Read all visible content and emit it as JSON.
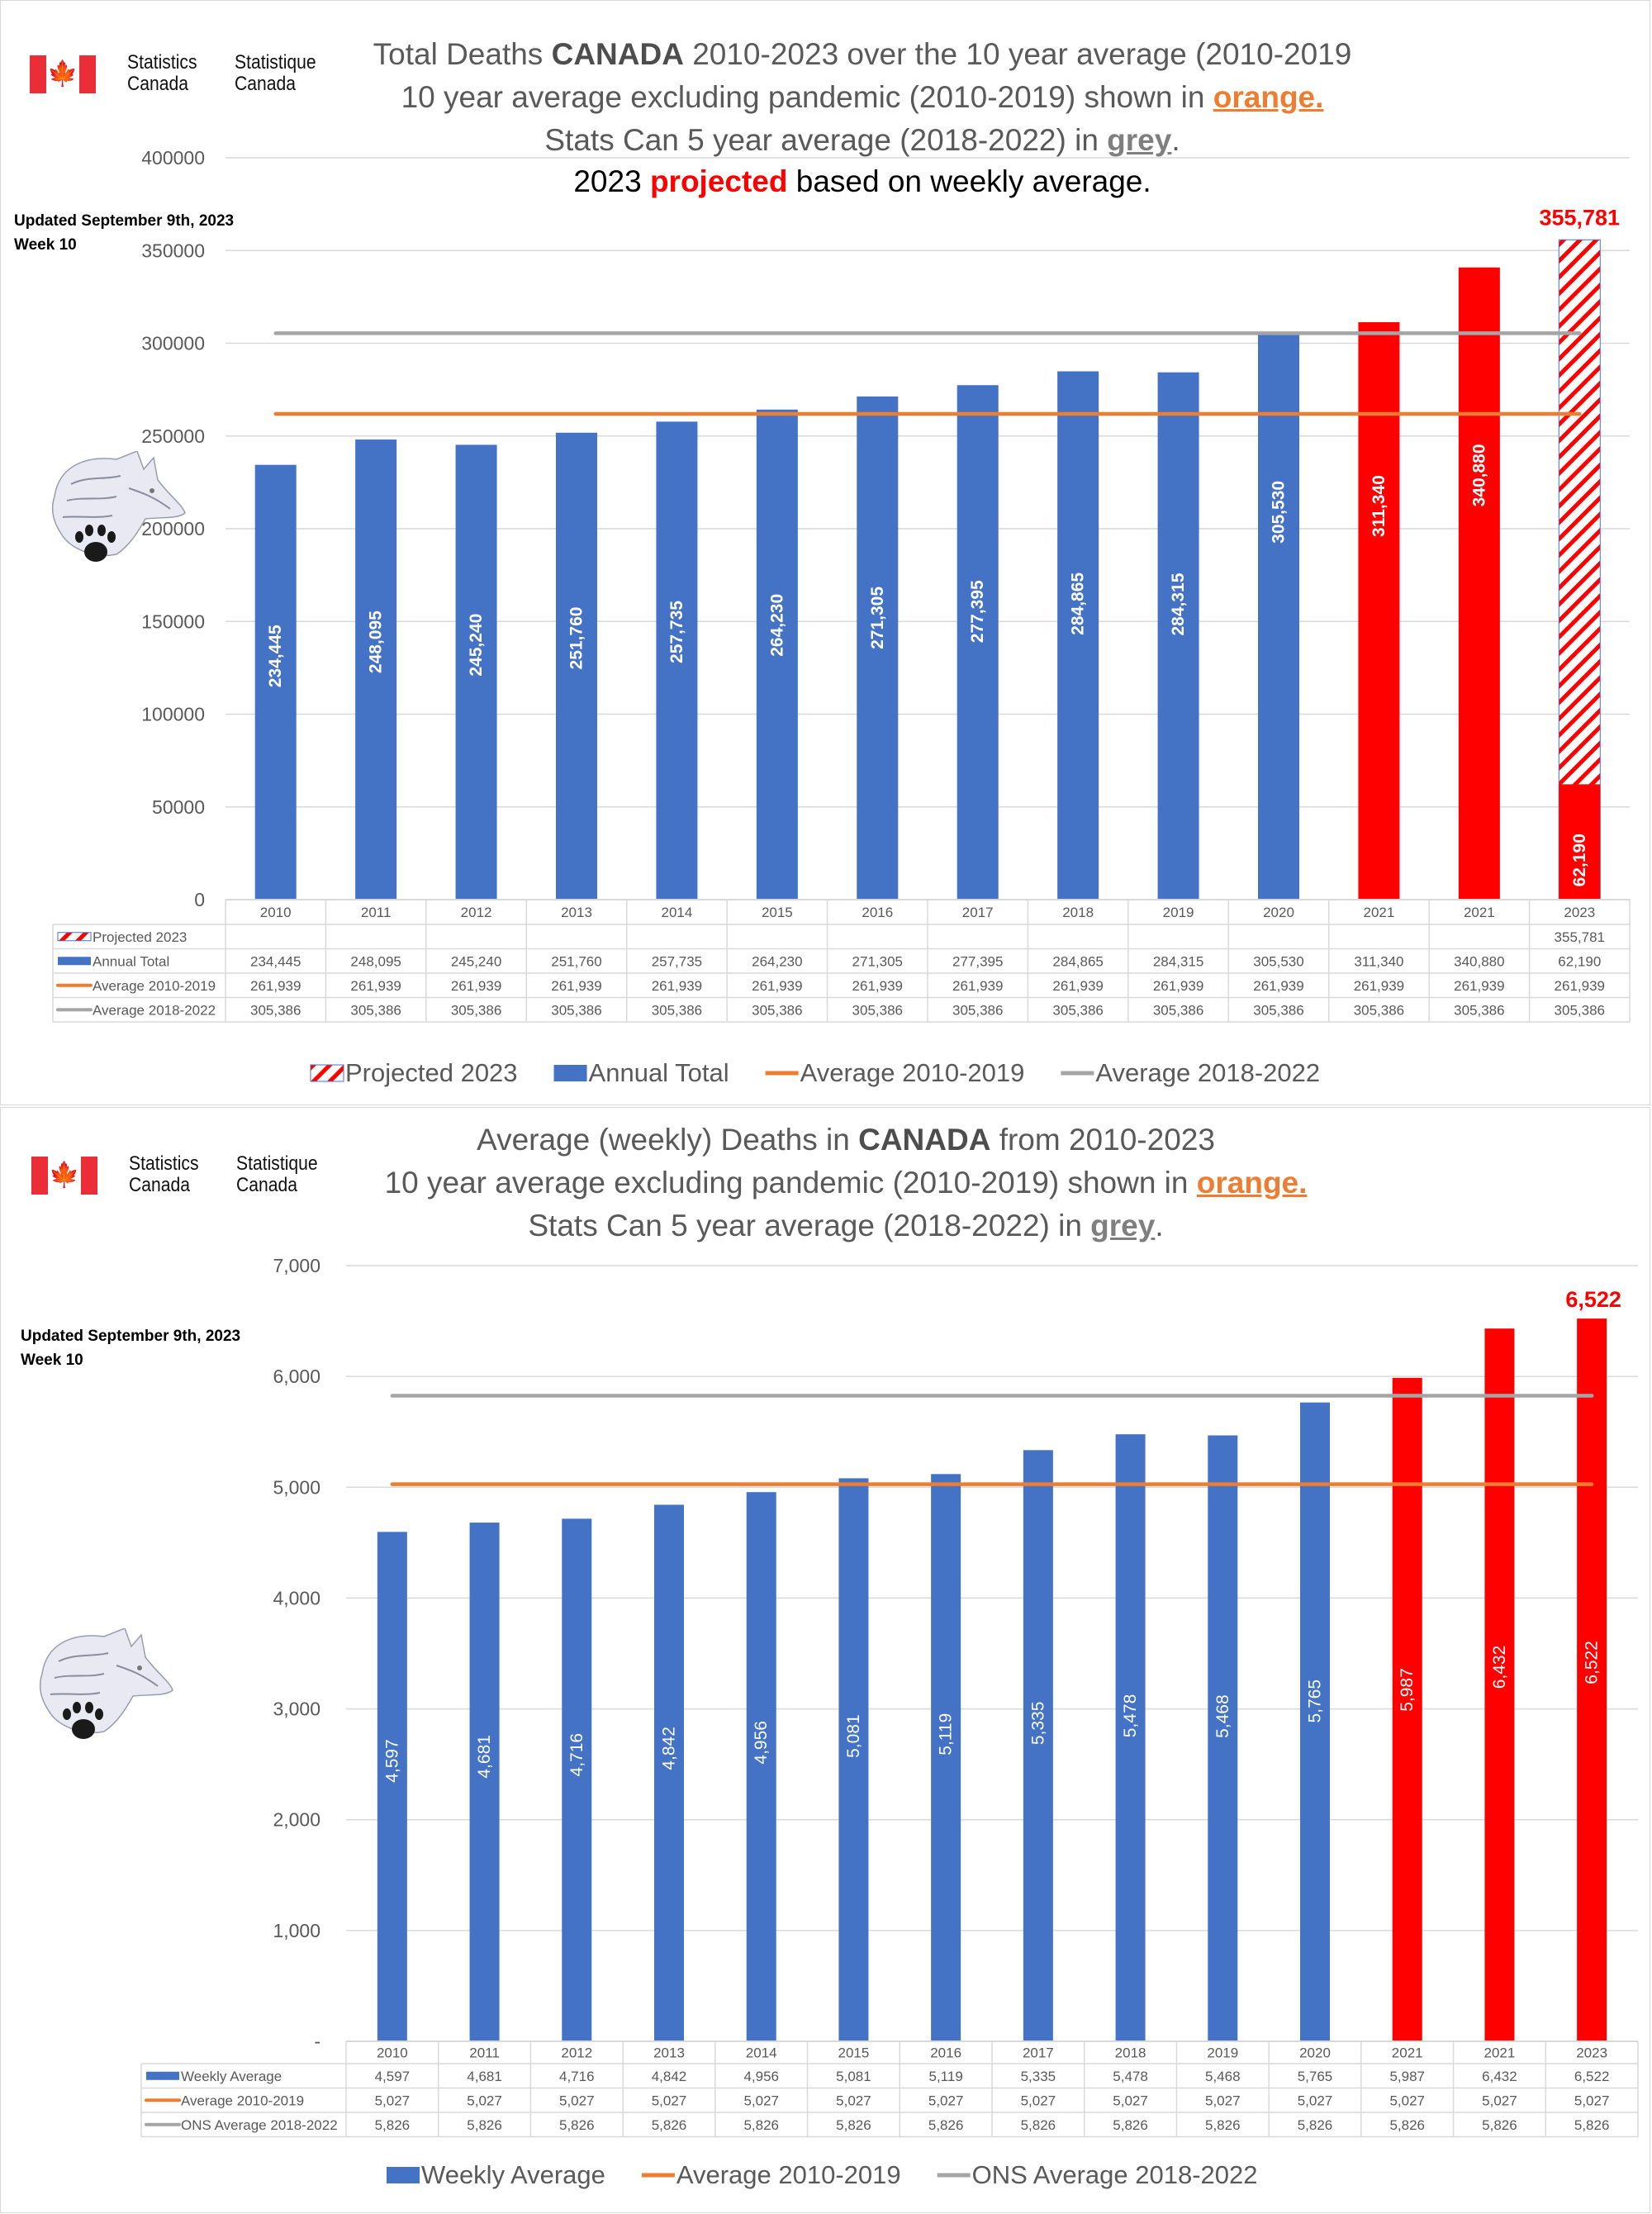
{
  "logo": {
    "en_line1": "Statistics",
    "en_line2": "Canada",
    "fr_line1": "Statistique",
    "fr_line2": "Canada",
    "flag_glyph": "🍁"
  },
  "colors": {
    "blue": "#4472c4",
    "red": "#ff0000",
    "orange": "#ed7d31",
    "grey": "#a5a5a5",
    "axis_text": "#595959",
    "grid": "#d9d9d9"
  },
  "chart1": {
    "title": {
      "line1_a": "Total Deaths ",
      "line1_b": "CANADA",
      "line1_c": " 2010-2023 over the 10 year average (2010-2019",
      "line2_a": "10 year average excluding pandemic (2010-2019) shown in ",
      "line2_b": "orange.",
      "line3_a": "Stats Can 5 year average (2018-2022) in ",
      "line3_b": "grey",
      "line3_c": ".",
      "line4_a": "2023 ",
      "line4_b": "projected",
      "line4_c": " based on weekly average."
    },
    "updated": "Updated September 9th, 2023",
    "week": "Week 10",
    "projected_label": "355,781"
  },
  "chart2": {
    "title": {
      "line1_a": "Average (weekly) Deaths in ",
      "line1_b": "CANADA",
      "line1_c": " from 2010-2023",
      "line2_a": "10 year average excluding pandemic (2010-2019) shown in ",
      "line2_b": "orange.",
      "line3_a": "Stats Can 5 year average (2018-2022) in ",
      "line3_b": "grey",
      "line3_c": "."
    },
    "updated": "Updated September 9th, 2023",
    "week": "Week 10",
    "top_label": "6,522"
  },
  "chart_data": [
    {
      "type": "bar",
      "title": "Total Deaths CANADA 2010-2023 over the 10 year average (2010-2019",
      "categories": [
        "2010",
        "2011",
        "2012",
        "2013",
        "2014",
        "2015",
        "2016",
        "2017",
        "2018",
        "2019",
        "2020",
        "2021",
        "2021",
        "2023"
      ],
      "ylim": [
        0,
        400000
      ],
      "yticks": [
        "0",
        "50000",
        "100000",
        "150000",
        "200000",
        "250000",
        "300000",
        "350000",
        "400000"
      ],
      "ytick_values": [
        0,
        50000,
        100000,
        150000,
        200000,
        250000,
        300000,
        350000,
        400000
      ],
      "grid": true,
      "legend_position": "bottom",
      "bar_colors": [
        "blue",
        "blue",
        "blue",
        "blue",
        "blue",
        "blue",
        "blue",
        "blue",
        "blue",
        "blue",
        "blue",
        "red",
        "red",
        "red"
      ],
      "series": [
        {
          "name": "Projected 2023",
          "kind": "hatched-bar",
          "values": [
            null,
            null,
            null,
            null,
            null,
            null,
            null,
            null,
            null,
            null,
            null,
            null,
            null,
            355781
          ],
          "labels": [
            "",
            "",
            "",
            "",
            "",
            "",
            "",
            "",
            "",
            "",
            "",
            "",
            "",
            "355,781"
          ]
        },
        {
          "name": "Annual Total",
          "kind": "bar",
          "values": [
            234445,
            248095,
            245240,
            251760,
            257735,
            264230,
            271305,
            277395,
            284865,
            284315,
            305530,
            311340,
            340880,
            62190
          ],
          "labels": [
            "234,445",
            "248,095",
            "245,240",
            "251,760",
            "257,735",
            "264,230",
            "271,305",
            "277,395",
            "284,865",
            "284,315",
            "305,530",
            "311,340",
            "340,880",
            "62,190"
          ]
        },
        {
          "name": "Average 2010-2019",
          "kind": "line",
          "color": "orange",
          "values": [
            261939,
            261939,
            261939,
            261939,
            261939,
            261939,
            261939,
            261939,
            261939,
            261939,
            261939,
            261939,
            261939,
            261939
          ],
          "labels": [
            "261,939",
            "261,939",
            "261,939",
            "261,939",
            "261,939",
            "261,939",
            "261,939",
            "261,939",
            "261,939",
            "261,939",
            "261,939",
            "261,939",
            "261,939",
            "261,939"
          ]
        },
        {
          "name": "Average 2018-2022",
          "kind": "line",
          "color": "grey",
          "values": [
            305386,
            305386,
            305386,
            305386,
            305386,
            305386,
            305386,
            305386,
            305386,
            305386,
            305386,
            305386,
            305386,
            305386
          ],
          "labels": [
            "305,386",
            "305,386",
            "305,386",
            "305,386",
            "305,386",
            "305,386",
            "305,386",
            "305,386",
            "305,386",
            "305,386",
            "305,386",
            "305,386",
            "305,386",
            "305,386"
          ]
        }
      ]
    },
    {
      "type": "bar",
      "title": "Average (weekly) Deaths in CANADA from 2010-2023",
      "categories": [
        "2010",
        "2011",
        "2012",
        "2013",
        "2014",
        "2015",
        "2016",
        "2017",
        "2018",
        "2019",
        "2020",
        "2021",
        "2021",
        "2023"
      ],
      "ylim": [
        0,
        7000
      ],
      "yticks": [
        "-",
        "1,000",
        "2,000",
        "3,000",
        "4,000",
        "5,000",
        "6,000",
        "7,000"
      ],
      "ytick_values": [
        0,
        1000,
        2000,
        3000,
        4000,
        5000,
        6000,
        7000
      ],
      "grid": true,
      "legend_position": "bottom",
      "bar_colors": [
        "blue",
        "blue",
        "blue",
        "blue",
        "blue",
        "blue",
        "blue",
        "blue",
        "blue",
        "blue",
        "blue",
        "red",
        "red",
        "red"
      ],
      "series": [
        {
          "name": "Weekly Average",
          "kind": "bar",
          "values": [
            4597,
            4681,
            4716,
            4842,
            4956,
            5081,
            5119,
            5335,
            5478,
            5468,
            5765,
            5987,
            6432,
            6522
          ],
          "labels": [
            "4,597",
            "4,681",
            "4,716",
            "4,842",
            "4,956",
            "5,081",
            "5,119",
            "5,335",
            "5,478",
            "5,468",
            "5,765",
            "5,987",
            "6,432",
            "6,522"
          ]
        },
        {
          "name": "Average 2010-2019",
          "kind": "line",
          "color": "orange",
          "values": [
            5027,
            5027,
            5027,
            5027,
            5027,
            5027,
            5027,
            5027,
            5027,
            5027,
            5027,
            5027,
            5027,
            5027
          ],
          "labels": [
            "5,027",
            "5,027",
            "5,027",
            "5,027",
            "5,027",
            "5,027",
            "5,027",
            "5,027",
            "5,027",
            "5,027",
            "5,027",
            "5,027",
            "5,027",
            "5,027"
          ]
        },
        {
          "name": "ONS Average 2018-2022",
          "kind": "line",
          "color": "grey",
          "values": [
            5826,
            5826,
            5826,
            5826,
            5826,
            5826,
            5826,
            5826,
            5826,
            5826,
            5826,
            5826,
            5826,
            5826
          ],
          "labels": [
            "5,826",
            "5,826",
            "5,826",
            "5,826",
            "5,826",
            "5,826",
            "5,826",
            "5,826",
            "5,826",
            "5,826",
            "5,826",
            "5,826",
            "5,826",
            "5,826"
          ]
        }
      ]
    }
  ]
}
